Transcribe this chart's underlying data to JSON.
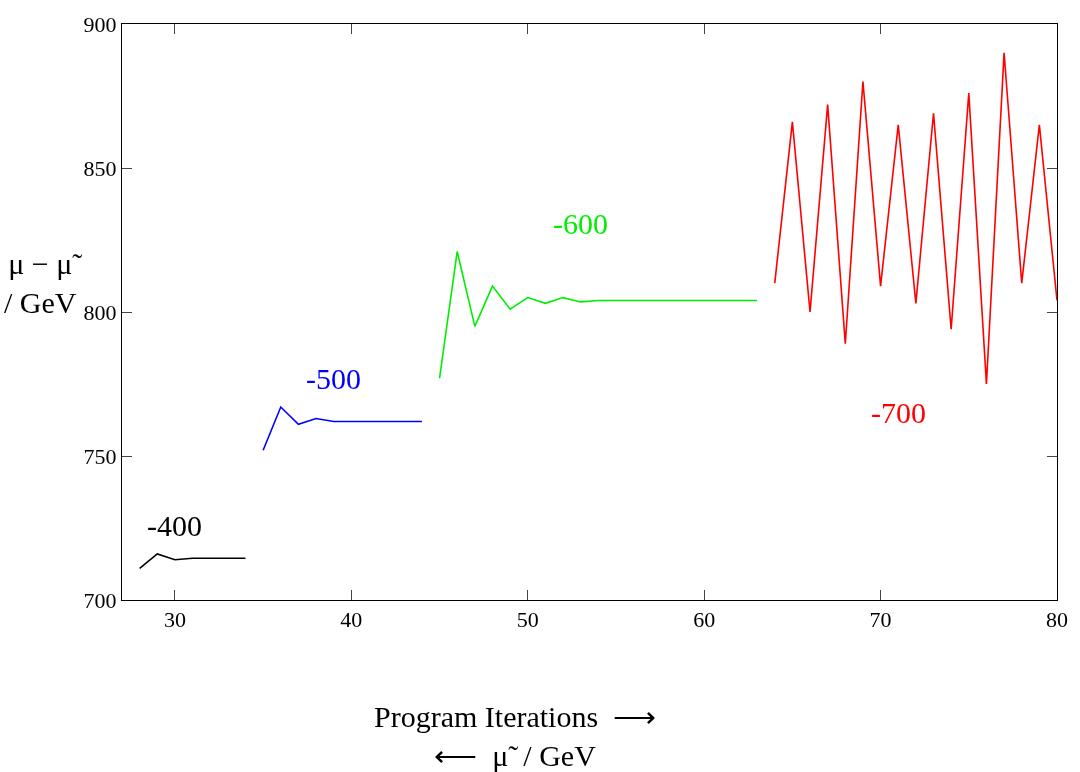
{
  "chart_data": {
    "type": "line",
    "xlabel": "Program Iterations  ⟶\n⟵  μ̃  / GeV",
    "ylabel": "μ − μ̃\n/ GeV",
    "xlim": [
      27,
      80
    ],
    "xticks": [
      30,
      40,
      50,
      60,
      70,
      80
    ],
    "ylim": [
      700,
      900
    ],
    "yticks": [
      700,
      750,
      800,
      850,
      900
    ],
    "marker": "none",
    "line_style": "solid",
    "series": [
      {
        "color": "#000000",
        "x": [
          28,
          29,
          30,
          31,
          32,
          33,
          34
        ],
        "values": [
          711,
          716,
          714,
          714.5,
          714.5,
          714.5,
          714.5
        ]
      },
      {
        "color": "#0000ff",
        "x": [
          35,
          36,
          37,
          38,
          39,
          40,
          41,
          42,
          43,
          44
        ],
        "values": [
          752,
          767,
          761,
          763,
          762,
          762,
          762,
          762,
          762,
          762
        ]
      },
      {
        "color": "#00ee00",
        "x": [
          45,
          46,
          47,
          48,
          49,
          50,
          51,
          52,
          53,
          54,
          55,
          56,
          57,
          58,
          59,
          60,
          61,
          62,
          63
        ],
        "values": [
          777,
          821,
          795,
          809,
          801,
          805,
          803,
          805,
          803.5,
          804,
          804,
          804,
          804,
          804,
          804,
          804,
          804,
          804,
          804
        ]
      },
      {
        "color": "#ff0000",
        "x": [
          64,
          65,
          66,
          67,
          68,
          69,
          70,
          71,
          72,
          73,
          74,
          75,
          76,
          77,
          78,
          79,
          80
        ],
        "values": [
          810,
          866,
          800,
          872,
          789,
          880,
          809,
          865,
          803,
          869,
          794,
          876,
          775,
          890,
          810,
          865,
          804
        ]
      }
    ],
    "annotations": [
      "-400",
      "-500",
      "-600",
      "-700"
    ]
  }
}
